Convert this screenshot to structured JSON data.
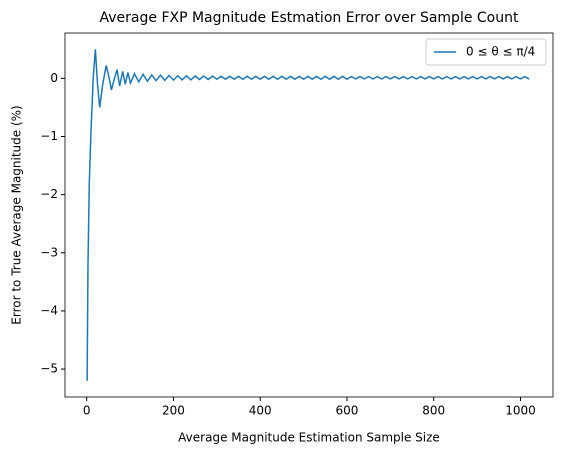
{
  "chart_data": {
    "type": "line",
    "title": "Average FXP Magnitude Estmation Error over Sample Count",
    "x_label": "Average Magnitude Estimation Sample Size",
    "y_label": "Error to True Average Magnitude (%)",
    "xlim": [
      -50,
      1075
    ],
    "ylim": [
      -5.48,
      0.78
    ],
    "xticks": [
      0,
      200,
      400,
      600,
      800,
      1000
    ],
    "yticks": [
      0,
      {
        "value": -1,
        "label": "−1"
      },
      {
        "value": -2,
        "label": "−2"
      },
      {
        "value": -3,
        "label": "−3"
      },
      {
        "value": -4,
        "label": "−4"
      },
      {
        "value": -5,
        "label": "−5"
      }
    ],
    "legend": "upper right",
    "series": [
      {
        "name": "0 ≤ θ ≤ π/4",
        "color": "#1f77b4",
        "x": [
          1,
          3,
          6,
          10,
          15,
          20,
          25,
          30,
          37,
          45,
          52,
          57,
          64,
          70,
          76,
          83,
          89,
          95,
          101,
          110,
          120,
          130,
          140,
          150,
          160,
          170,
          180,
          190,
          200,
          210,
          220,
          230,
          240,
          250,
          260,
          270,
          280,
          290,
          300,
          310,
          320,
          330,
          340,
          350,
          360,
          370,
          380,
          390,
          400,
          410,
          420,
          430,
          440,
          450,
          460,
          470,
          480,
          490,
          500,
          510,
          520,
          530,
          540,
          550,
          560,
          570,
          580,
          590,
          600,
          610,
          620,
          630,
          640,
          650,
          660,
          670,
          680,
          690,
          700,
          710,
          720,
          730,
          740,
          750,
          760,
          770,
          780,
          790,
          800,
          810,
          820,
          830,
          840,
          850,
          860,
          870,
          880,
          890,
          900,
          910,
          920,
          930,
          940,
          950,
          960,
          970,
          980,
          990,
          1000,
          1010,
          1020
        ],
        "values": [
          -5.2,
          -3.2,
          -1.8,
          -0.9,
          0,
          0.5,
          -0.1,
          -0.5,
          -0.1,
          0.22,
          0,
          -0.2,
          0,
          0.15,
          -0.13,
          0.12,
          -0.1,
          0.1,
          -0.08,
          0.08,
          -0.06,
          0.07,
          -0.05,
          0.06,
          -0.04,
          0.055,
          -0.035,
          0.05,
          -0.03,
          0.045,
          -0.025,
          0.045,
          -0.025,
          0.04,
          -0.02,
          0.04,
          -0.02,
          0.04,
          -0.015,
          0.035,
          -0.015,
          0.035,
          -0.015,
          0.035,
          -0.015,
          0.035,
          -0.015,
          0.035,
          -0.015,
          0.035,
          -0.015,
          0.035,
          -0.015,
          0.035,
          -0.015,
          0.035,
          -0.015,
          0.035,
          -0.015,
          0.035,
          -0.015,
          0.035,
          -0.015,
          0.035,
          -0.015,
          0.035,
          -0.015,
          0.035,
          -0.015,
          0.03,
          -0.01,
          0.03,
          -0.01,
          0.03,
          -0.01,
          0.03,
          -0.01,
          0.03,
          -0.01,
          0.03,
          -0.01,
          0.03,
          -0.01,
          0.03,
          -0.01,
          0.03,
          -0.01,
          0.03,
          -0.01,
          0.03,
          -0.01,
          0.03,
          -0.01,
          0.03,
          -0.01,
          0.03,
          -0.01,
          0.03,
          -0.01,
          0.03,
          -0.01,
          0.03,
          -0.01,
          0.03,
          -0.01,
          0.03,
          -0.01,
          0.03,
          -0.01,
          0.03,
          -0.01
        ]
      }
    ]
  }
}
